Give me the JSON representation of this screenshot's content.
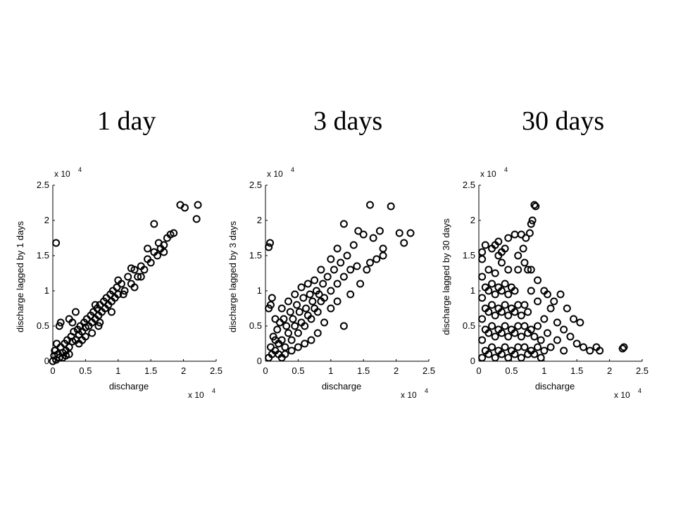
{
  "titles": [
    "1 day",
    "3 days",
    "30 days"
  ],
  "chart_data": [
    {
      "type": "scatter",
      "title": "1 day",
      "xlabel": "discharge",
      "ylabel": "discharge lagged by 1 days",
      "x_exponent": "x 10",
      "y_exponent": "x 10",
      "exponent_power": "4",
      "xlim": [
        0,
        2.5
      ],
      "ylim": [
        0,
        2.5
      ],
      "xticks": [
        "0",
        "0.5",
        "1",
        "1.5",
        "2",
        "2.5"
      ],
      "yticks": [
        "0",
        "0.5",
        "1",
        "1.5",
        "2",
        "2.5"
      ],
      "marker": "open-circle",
      "points": [
        [
          0.05,
          0.02
        ],
        [
          0.08,
          0.1
        ],
        [
          0.1,
          0.05
        ],
        [
          0.12,
          0.2
        ],
        [
          0.15,
          0.12
        ],
        [
          0.18,
          0.25
        ],
        [
          0.2,
          0.15
        ],
        [
          0.22,
          0.3
        ],
        [
          0.25,
          0.2
        ],
        [
          0.28,
          0.35
        ],
        [
          0.3,
          0.28
        ],
        [
          0.32,
          0.42
        ],
        [
          0.35,
          0.3
        ],
        [
          0.38,
          0.45
        ],
        [
          0.4,
          0.38
        ],
        [
          0.42,
          0.5
        ],
        [
          0.45,
          0.42
        ],
        [
          0.48,
          0.55
        ],
        [
          0.5,
          0.48
        ],
        [
          0.52,
          0.6
        ],
        [
          0.55,
          0.5
        ],
        [
          0.58,
          0.65
        ],
        [
          0.6,
          0.55
        ],
        [
          0.62,
          0.7
        ],
        [
          0.65,
          0.6
        ],
        [
          0.68,
          0.75
        ],
        [
          0.7,
          0.65
        ],
        [
          0.72,
          0.8
        ],
        [
          0.75,
          0.7
        ],
        [
          0.78,
          0.85
        ],
        [
          0.8,
          0.75
        ],
        [
          0.82,
          0.9
        ],
        [
          0.85,
          0.8
        ],
        [
          0.88,
          0.95
        ],
        [
          0.9,
          0.85
        ],
        [
          0.92,
          1.0
        ],
        [
          0.95,
          0.9
        ],
        [
          0.98,
          1.05
        ],
        [
          1.0,
          0.95
        ],
        [
          1.05,
          1.1
        ],
        [
          1.1,
          1.0
        ],
        [
          1.15,
          1.2
        ],
        [
          1.2,
          1.1
        ],
        [
          1.25,
          1.3
        ],
        [
          1.3,
          1.2
        ],
        [
          1.35,
          1.35
        ],
        [
          1.4,
          1.3
        ],
        [
          1.45,
          1.45
        ],
        [
          1.5,
          1.4
        ],
        [
          1.55,
          1.55
        ],
        [
          1.6,
          1.5
        ],
        [
          1.65,
          1.6
        ],
        [
          1.7,
          1.65
        ],
        [
          1.75,
          1.75
        ],
        [
          1.8,
          1.8
        ],
        [
          1.55,
          1.95
        ],
        [
          1.95,
          2.22
        ],
        [
          2.02,
          2.18
        ],
        [
          2.2,
          2.02
        ],
        [
          2.22,
          2.22
        ],
        [
          1.85,
          1.82
        ],
        [
          0.05,
          1.68
        ],
        [
          0.1,
          0.5
        ],
        [
          0.12,
          0.55
        ],
        [
          0.3,
          0.55
        ],
        [
          0.25,
          0.6
        ],
        [
          0.35,
          0.7
        ],
        [
          1.2,
          1.32
        ],
        [
          1.25,
          1.05
        ],
        [
          0.0,
          0.0
        ],
        [
          0.02,
          0.08
        ],
        [
          0.03,
          0.15
        ],
        [
          0.06,
          0.25
        ],
        [
          0.15,
          0.05
        ],
        [
          0.2,
          0.08
        ],
        [
          0.25,
          0.1
        ],
        [
          0.45,
          0.3
        ],
        [
          0.6,
          0.4
        ],
        [
          0.7,
          0.5
        ],
        [
          0.9,
          0.7
        ],
        [
          0.4,
          0.25
        ],
        [
          0.5,
          0.35
        ],
        [
          0.65,
          0.8
        ],
        [
          0.72,
          0.55
        ],
        [
          1.0,
          1.15
        ],
        [
          1.08,
          0.95
        ],
        [
          1.35,
          1.2
        ],
        [
          1.45,
          1.6
        ],
        [
          1.62,
          1.68
        ],
        [
          1.7,
          1.55
        ]
      ]
    },
    {
      "type": "scatter",
      "title": "3 days",
      "xlabel": "discharge",
      "ylabel": "discharge lagged by 3 days",
      "x_exponent": "x 10",
      "y_exponent": "x 10",
      "exponent_power": "4",
      "xlim": [
        0,
        2.5
      ],
      "ylim": [
        0,
        2.5
      ],
      "xticks": [
        "0",
        "0.5",
        "1",
        "1.5",
        "2",
        "2.5"
      ],
      "yticks": [
        "0",
        "0.5",
        "1",
        "1.5",
        "2",
        "2.5"
      ],
      "marker": "open-circle",
      "points": [
        [
          0.05,
          0.05
        ],
        [
          0.08,
          0.2
        ],
        [
          0.1,
          0.1
        ],
        [
          0.12,
          0.35
        ],
        [
          0.15,
          0.15
        ],
        [
          0.18,
          0.45
        ],
        [
          0.2,
          0.25
        ],
        [
          0.22,
          0.55
        ],
        [
          0.25,
          0.3
        ],
        [
          0.28,
          0.6
        ],
        [
          0.3,
          0.2
        ],
        [
          0.32,
          0.5
        ],
        [
          0.35,
          0.4
        ],
        [
          0.38,
          0.7
        ],
        [
          0.4,
          0.3
        ],
        [
          0.42,
          0.6
        ],
        [
          0.45,
          0.5
        ],
        [
          0.48,
          0.8
        ],
        [
          0.5,
          0.4
        ],
        [
          0.52,
          0.7
        ],
        [
          0.55,
          0.55
        ],
        [
          0.58,
          0.9
        ],
        [
          0.6,
          0.5
        ],
        [
          0.62,
          0.75
        ],
        [
          0.65,
          0.65
        ],
        [
          0.68,
          0.95
        ],
        [
          0.7,
          0.6
        ],
        [
          0.72,
          0.85
        ],
        [
          0.75,
          0.75
        ],
        [
          0.78,
          1.0
        ],
        [
          0.8,
          0.7
        ],
        [
          0.82,
          0.95
        ],
        [
          0.85,
          0.85
        ],
        [
          0.88,
          1.1
        ],
        [
          0.9,
          0.9
        ],
        [
          0.95,
          1.2
        ],
        [
          1.0,
          1.0
        ],
        [
          1.05,
          1.3
        ],
        [
          1.1,
          1.1
        ],
        [
          1.15,
          1.4
        ],
        [
          1.2,
          1.2
        ],
        [
          1.25,
          1.5
        ],
        [
          1.3,
          1.3
        ],
        [
          1.35,
          1.65
        ],
        [
          1.4,
          1.35
        ],
        [
          1.5,
          1.8
        ],
        [
          1.6,
          1.4
        ],
        [
          1.65,
          1.75
        ],
        [
          1.75,
          1.85
        ],
        [
          1.8,
          1.6
        ],
        [
          1.2,
          1.95
        ],
        [
          1.42,
          1.85
        ],
        [
          1.6,
          2.22
        ],
        [
          1.92,
          2.2
        ],
        [
          2.05,
          1.82
        ],
        [
          2.12,
          1.68
        ],
        [
          2.22,
          1.82
        ],
        [
          0.05,
          1.62
        ],
        [
          0.07,
          1.68
        ],
        [
          0.08,
          0.8
        ],
        [
          0.05,
          0.75
        ],
        [
          0.1,
          0.9
        ],
        [
          0.15,
          0.3
        ],
        [
          0.2,
          0.1
        ],
        [
          0.25,
          0.05
        ],
        [
          0.3,
          0.1
        ],
        [
          0.4,
          0.15
        ],
        [
          0.5,
          0.2
        ],
        [
          0.6,
          0.25
        ],
        [
          0.7,
          0.3
        ],
        [
          0.8,
          0.4
        ],
        [
          0.9,
          0.55
        ],
        [
          1.0,
          0.75
        ],
        [
          1.1,
          0.85
        ],
        [
          1.2,
          0.5
        ],
        [
          1.3,
          0.95
        ],
        [
          1.45,
          1.1
        ],
        [
          1.55,
          1.3
        ],
        [
          1.7,
          1.45
        ],
        [
          1.8,
          1.5
        ],
        [
          0.15,
          0.6
        ],
        [
          0.25,
          0.75
        ],
        [
          0.35,
          0.85
        ],
        [
          0.45,
          0.95
        ],
        [
          0.55,
          1.05
        ],
        [
          0.65,
          1.1
        ],
        [
          0.75,
          1.15
        ],
        [
          0.85,
          1.3
        ],
        [
          1.0,
          1.45
        ],
        [
          1.1,
          1.6
        ]
      ]
    },
    {
      "type": "scatter",
      "title": "30 days",
      "xlabel": "discharge",
      "ylabel": "discharge lagged by 30 days",
      "x_exponent": "x 10",
      "y_exponent": "x 10",
      "exponent_power": "4",
      "xlim": [
        0,
        2.5
      ],
      "ylim": [
        0,
        2.5
      ],
      "xticks": [
        "0",
        "0.5",
        "1",
        "1.5",
        "2",
        "2.5"
      ],
      "yticks": [
        "0",
        "0.5",
        "1",
        "1.5",
        "2",
        "2.5"
      ],
      "marker": "open-circle",
      "points": [
        [
          0.05,
          0.05
        ],
        [
          0.05,
          0.3
        ],
        [
          0.05,
          0.6
        ],
        [
          0.05,
          0.9
        ],
        [
          0.05,
          1.2
        ],
        [
          0.05,
          1.45
        ],
        [
          0.1,
          0.15
        ],
        [
          0.1,
          0.45
        ],
        [
          0.1,
          0.75
        ],
        [
          0.1,
          1.05
        ],
        [
          0.15,
          0.1
        ],
        [
          0.15,
          0.4
        ],
        [
          0.15,
          0.7
        ],
        [
          0.15,
          1.0
        ],
        [
          0.15,
          1.3
        ],
        [
          0.2,
          0.2
        ],
        [
          0.2,
          0.5
        ],
        [
          0.2,
          0.8
        ],
        [
          0.2,
          1.1
        ],
        [
          0.2,
          1.6
        ],
        [
          0.25,
          0.05
        ],
        [
          0.25,
          0.35
        ],
        [
          0.25,
          0.65
        ],
        [
          0.25,
          0.95
        ],
        [
          0.25,
          1.25
        ],
        [
          0.3,
          0.15
        ],
        [
          0.3,
          0.45
        ],
        [
          0.3,
          0.75
        ],
        [
          0.3,
          1.05
        ],
        [
          0.3,
          1.7
        ],
        [
          0.35,
          0.1
        ],
        [
          0.35,
          0.4
        ],
        [
          0.35,
          0.7
        ],
        [
          0.35,
          1.0
        ],
        [
          0.35,
          1.4
        ],
        [
          0.4,
          0.2
        ],
        [
          0.4,
          0.5
        ],
        [
          0.4,
          0.8
        ],
        [
          0.4,
          1.1
        ],
        [
          0.45,
          0.05
        ],
        [
          0.45,
          0.35
        ],
        [
          0.45,
          0.65
        ],
        [
          0.45,
          0.95
        ],
        [
          0.45,
          1.3
        ],
        [
          0.5,
          0.15
        ],
        [
          0.5,
          0.45
        ],
        [
          0.5,
          0.75
        ],
        [
          0.5,
          1.05
        ],
        [
          0.55,
          0.1
        ],
        [
          0.55,
          0.4
        ],
        [
          0.55,
          0.7
        ],
        [
          0.55,
          1.0
        ],
        [
          0.6,
          0.2
        ],
        [
          0.6,
          0.5
        ],
        [
          0.6,
          0.8
        ],
        [
          0.6,
          1.3
        ],
        [
          0.65,
          0.05
        ],
        [
          0.65,
          0.35
        ],
        [
          0.65,
          0.65
        ],
        [
          0.65,
          1.8
        ],
        [
          0.7,
          0.2
        ],
        [
          0.7,
          0.5
        ],
        [
          0.7,
          0.8
        ],
        [
          0.75,
          0.1
        ],
        [
          0.75,
          0.4
        ],
        [
          0.75,
          0.7
        ],
        [
          0.75,
          1.3
        ],
        [
          0.8,
          0.15
        ],
        [
          0.8,
          0.45
        ],
        [
          0.8,
          1.0
        ],
        [
          0.85,
          0.1
        ],
        [
          0.85,
          0.35
        ],
        [
          0.9,
          0.2
        ],
        [
          0.9,
          0.5
        ],
        [
          0.9,
          0.85
        ],
        [
          0.95,
          0.05
        ],
        [
          0.95,
          0.3
        ],
        [
          1.0,
          0.15
        ],
        [
          1.0,
          0.6
        ],
        [
          1.05,
          0.4
        ],
        [
          1.1,
          0.2
        ],
        [
          1.2,
          0.3
        ],
        [
          1.3,
          0.15
        ],
        [
          1.4,
          0.35
        ],
        [
          1.5,
          0.25
        ],
        [
          1.6,
          0.2
        ],
        [
          1.7,
          0.15
        ],
        [
          1.8,
          0.2
        ],
        [
          1.85,
          0.15
        ],
        [
          2.2,
          0.18
        ],
        [
          2.22,
          0.2
        ],
        [
          1.55,
          0.55
        ],
        [
          1.45,
          0.6
        ],
        [
          1.35,
          0.75
        ],
        [
          1.15,
          0.85
        ],
        [
          1.25,
          0.95
        ],
        [
          0.85,
          2.22
        ],
        [
          0.87,
          2.2
        ],
        [
          0.82,
          2.0
        ],
        [
          0.8,
          1.95
        ],
        [
          0.78,
          1.82
        ],
        [
          0.72,
          1.75
        ],
        [
          0.68,
          1.6
        ],
        [
          0.55,
          1.8
        ],
        [
          0.45,
          1.75
        ],
        [
          0.4,
          1.6
        ],
        [
          0.35,
          1.55
        ],
        [
          0.3,
          1.5
        ],
        [
          0.25,
          1.65
        ],
        [
          0.1,
          1.65
        ],
        [
          0.05,
          1.55
        ],
        [
          0.6,
          1.5
        ],
        [
          0.7,
          1.4
        ],
        [
          0.8,
          1.3
        ],
        [
          0.9,
          1.15
        ],
        [
          1.0,
          1.0
        ],
        [
          1.05,
          0.95
        ],
        [
          1.1,
          0.75
        ],
        [
          1.2,
          0.55
        ],
        [
          1.3,
          0.45
        ]
      ]
    }
  ]
}
